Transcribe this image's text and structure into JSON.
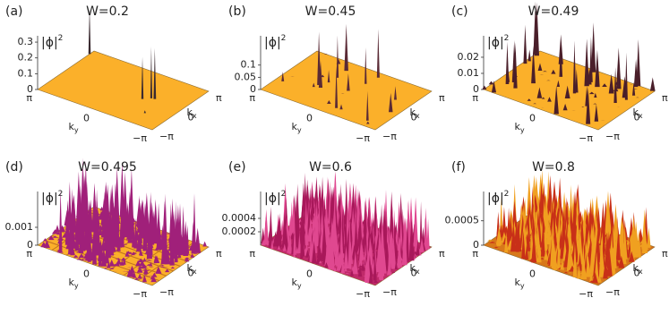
{
  "panels": [
    {
      "label": "(a)",
      "title": "W=0.2",
      "zlabel": {
        "base": "|ϕ|",
        "sup": "2"
      },
      "zlim": [
        0,
        0.34
      ],
      "zticks": [
        0,
        0.1,
        0.2,
        0.3
      ]
    },
    {
      "label": "(b)",
      "title": "W=0.45",
      "zlabel": {
        "base": "|ϕ|",
        "sup": "2"
      },
      "zlim": [
        0,
        0.22
      ],
      "zticks": [
        0,
        0.05,
        0.1
      ]
    },
    {
      "label": "(c)",
      "title": "W=0.49",
      "zlabel": {
        "base": "|ϕ|",
        "sup": "2"
      },
      "zlim": [
        0,
        0.0333
      ],
      "zticks": [
        0,
        0.01,
        0.02
      ]
    },
    {
      "label": "(d)",
      "title": "W=0.495",
      "zlabel": {
        "base": "|ϕ|",
        "sup": "2"
      },
      "zlim": [
        0,
        0.003
      ],
      "zticks": [
        0,
        0.001
      ]
    },
    {
      "label": "(e)",
      "title": "W=0.6",
      "zlabel": {
        "base": "|ϕ|",
        "sup": "2"
      },
      "zlim": [
        0,
        0.0008
      ],
      "zticks": [
        0.0002,
        0.0004
      ]
    },
    {
      "label": "(f)",
      "title": "W=0.8",
      "zlabel": {
        "base": "|ϕ|",
        "sup": "2"
      },
      "zlim": [
        0,
        0.0011
      ],
      "zticks": [
        0,
        0.0005
      ]
    }
  ],
  "ky_axis": {
    "label": {
      "base": "k",
      "sub": "y"
    },
    "ticks": [
      "π",
      "0",
      "−π"
    ]
  },
  "kx_axis": {
    "label": {
      "base": "k",
      "sub": "x"
    },
    "ticks": [
      "−π",
      "0",
      "π"
    ]
  }
}
